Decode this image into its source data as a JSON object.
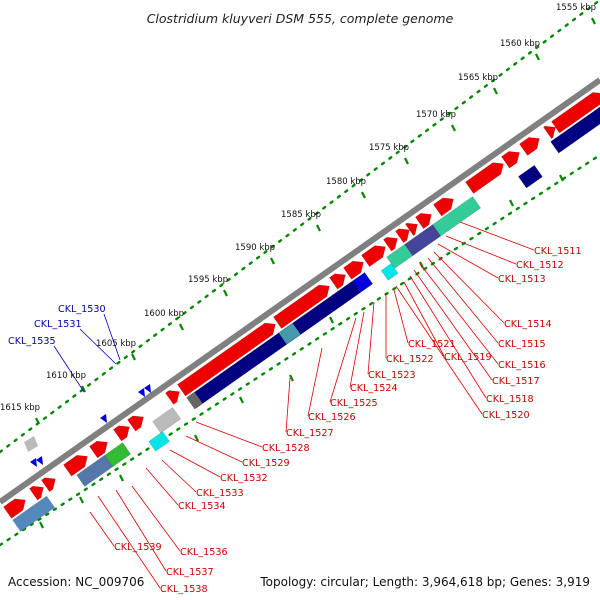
{
  "title": "Clostridium kluyveri DSM 555, complete genome",
  "footer": {
    "accession": "Accession: NC_009706",
    "summary": "Topology: circular; Length: 3,964,618 bp; Genes: 3,919"
  },
  "scale_labels": [
    "1555 kbp",
    "1560 kbp",
    "1565 kbp",
    "1570 kbp",
    "1575 kbp",
    "1580 kbp",
    "1585 kbp",
    "1590 kbp",
    "1595 kbp",
    "1600 kbp",
    "1605 kbp",
    "1610 kbp",
    "1615 kbp"
  ],
  "gene_labels_red": [
    "CKL_1511",
    "CKL_1512",
    "CKL_1513",
    "CKL_1514",
    "CKL_1515",
    "CKL_1516",
    "CKL_1517",
    "CKL_1518",
    "CKL_1519",
    "CKL_1520",
    "CKL_1521",
    "CKL_1522",
    "CKL_1523",
    "CKL_1524",
    "CKL_1525",
    "CKL_1526",
    "CKL_1527",
    "CKL_1528",
    "CKL_1529",
    "CKL_1532",
    "CKL_1533",
    "CKL_1534",
    "CKL_1536",
    "CKL_1537",
    "CKL_1538",
    "CKL_1539"
  ],
  "gene_labels_blue": [
    "CKL_1530",
    "CKL_1531",
    "CKL_1535"
  ],
  "colors": {
    "forward_cds": "#ee0000",
    "reverse_track": "#000080",
    "cyan": "#00e5e5",
    "teal": "#33cc99",
    "green": "#33bb33",
    "blue_gene": "#0000dd",
    "backbone": "#808080",
    "tick_green": "#008800"
  }
}
